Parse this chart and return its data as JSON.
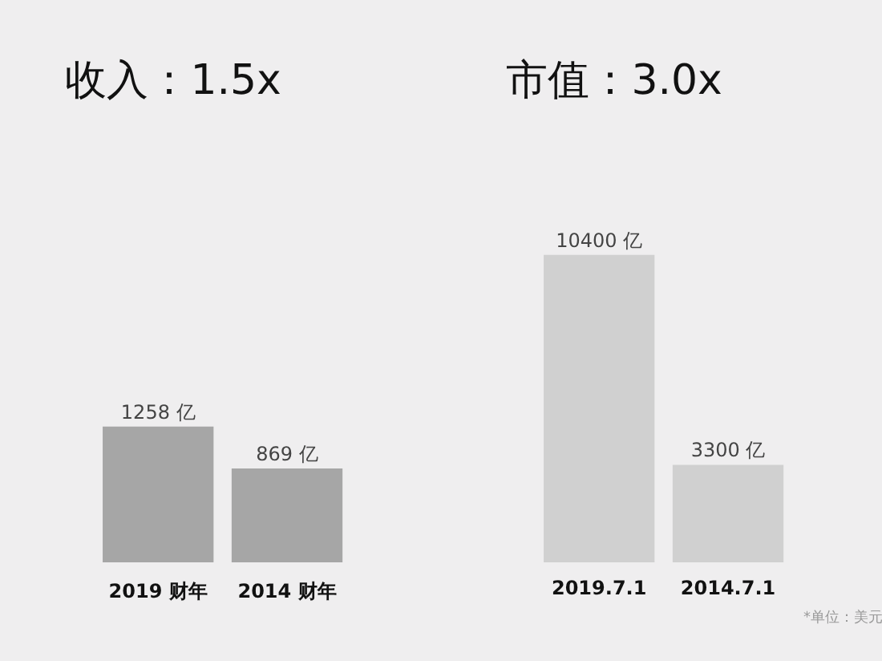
{
  "chart_data": [
    {
      "type": "bar",
      "title": "收入：1.5x",
      "categories": [
        "2019 财年",
        "2014 财年"
      ],
      "values": [
        1258,
        869
      ],
      "value_labels": [
        "1258 亿",
        "869 亿"
      ],
      "color": "#a6a6a6",
      "ylim": [
        0,
        5200
      ],
      "grid": false
    },
    {
      "type": "bar",
      "title": "市值：3.0x",
      "categories": [
        "2019.7.1",
        "2014.7.1"
      ],
      "values": [
        10400,
        3300
      ],
      "value_labels": [
        "10400 亿",
        "3300 亿"
      ],
      "color": "#d0d0d0",
      "ylim": [
        0,
        19000
      ],
      "grid": false,
      "annotations": [
        "*单位：美元"
      ]
    }
  ]
}
